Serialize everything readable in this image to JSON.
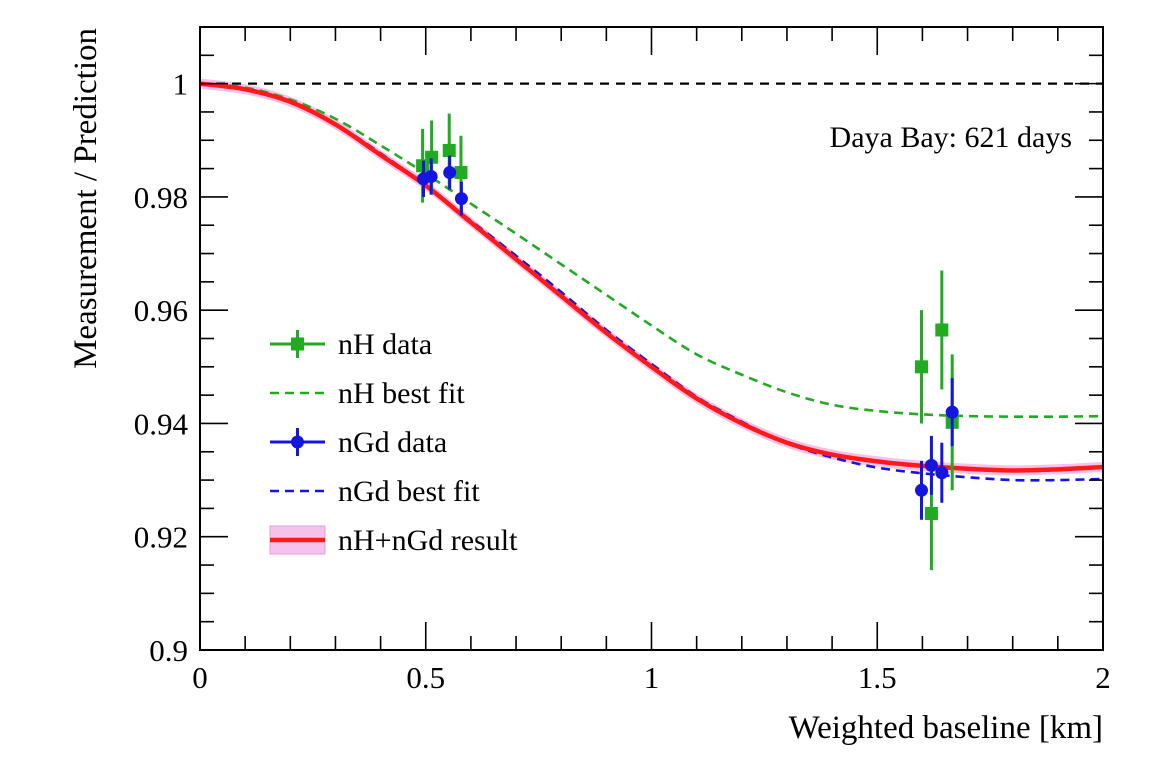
{
  "chart_data": {
    "type": "scatter",
    "title": "",
    "xlabel": "Weighted baseline [km]",
    "ylabel": "Measurement / Prediction",
    "xlim": [
      0,
      2
    ],
    "ylim": [
      0.9,
      1.01
    ],
    "x_ticks": [
      0,
      0.5,
      1,
      1.5,
      2
    ],
    "x_tick_labels": [
      "0",
      "0.5",
      "1",
      "1.5",
      "2"
    ],
    "x_minor_step": 0.1,
    "y_ticks": [
      0.9,
      0.92,
      0.94,
      0.96,
      0.98,
      1
    ],
    "y_tick_labels": [
      "0.9",
      "0.92",
      "0.94",
      "0.96",
      "0.98",
      "1"
    ],
    "y_minor_step": 0.005,
    "grid": false,
    "annotation": "Daya Bay: 621 days",
    "reference_line": {
      "y": 1.0,
      "style": "dashed",
      "color": "#000000"
    },
    "legend_position": "center-left",
    "series": [
      {
        "name": "nH data",
        "kind": "points",
        "marker": "square",
        "color": "#22aa22",
        "x": [
          0.493,
          0.513,
          0.552,
          0.578,
          1.598,
          1.62,
          1.643,
          1.666
        ],
        "y": [
          0.9855,
          0.987,
          0.9882,
          0.9843,
          0.95,
          0.9241,
          0.9565,
          0.9402
        ],
        "err": [
          0.0065,
          0.0065,
          0.0065,
          0.0065,
          0.01,
          0.01,
          0.0105,
          0.012
        ]
      },
      {
        "name": "nH best fit",
        "kind": "curve",
        "style": "dashed",
        "color": "#22aa22",
        "x": [
          0,
          0.1,
          0.2,
          0.3,
          0.4,
          0.5,
          0.6,
          0.7,
          0.8,
          0.9,
          1.0,
          1.1,
          1.2,
          1.3,
          1.4,
          1.5,
          1.6,
          1.7,
          1.8,
          1.9,
          2.0
        ],
        "y": [
          1.0,
          0.9993,
          0.9972,
          0.9938,
          0.9891,
          0.9841,
          0.9788,
          0.9735,
          0.9681,
          0.9627,
          0.9573,
          0.9522,
          0.9486,
          0.9455,
          0.9433,
          0.9422,
          0.9416,
          0.9413,
          0.9412,
          0.9412,
          0.9413
        ]
      },
      {
        "name": "nGd data",
        "kind": "points",
        "marker": "circle",
        "color": "#1515e0",
        "x": [
          0.495,
          0.512,
          0.553,
          0.579,
          1.598,
          1.62,
          1.643,
          1.666
        ],
        "y": [
          0.9832,
          0.9836,
          0.9843,
          0.9797,
          0.9282,
          0.9326,
          0.9313,
          0.942
        ],
        "err": [
          0.0032,
          0.0032,
          0.003,
          0.003,
          0.0052,
          0.0052,
          0.0053,
          0.006
        ]
      },
      {
        "name": "nGd best fit",
        "kind": "curve",
        "style": "dashed",
        "color": "#1515e0",
        "x": [
          0,
          0.1,
          0.2,
          0.3,
          0.4,
          0.5,
          0.6,
          0.7,
          0.8,
          0.9,
          1.0,
          1.1,
          1.2,
          1.3,
          1.4,
          1.5,
          1.6,
          1.7,
          1.8,
          1.9,
          2.0
        ],
        "y": [
          1.0,
          0.999,
          0.9969,
          0.9929,
          0.9877,
          0.982,
          0.9758,
          0.9696,
          0.9632,
          0.9565,
          0.9505,
          0.9447,
          0.9403,
          0.9365,
          0.934,
          0.9322,
          0.9312,
          0.9305,
          0.93,
          0.93,
          0.9302
        ]
      },
      {
        "name": "nH+nGd result",
        "kind": "band-curve",
        "style": "solid",
        "color": "#ff1a1a",
        "band_color": "#f6c2ec",
        "band_halfwidth": 0.0009,
        "x": [
          0,
          0.1,
          0.2,
          0.3,
          0.4,
          0.5,
          0.6,
          0.7,
          0.8,
          0.9,
          1.0,
          1.1,
          1.2,
          1.3,
          1.4,
          1.5,
          1.6,
          1.7,
          1.8,
          1.9,
          2.0
        ],
        "y": [
          1.0,
          0.999,
          0.9968,
          0.9928,
          0.9874,
          0.982,
          0.9755,
          0.969,
          0.9625,
          0.956,
          0.95,
          0.9444,
          0.94,
          0.9366,
          0.9345,
          0.9333,
          0.9325,
          0.932,
          0.9317,
          0.9319,
          0.9323
        ]
      }
    ]
  }
}
